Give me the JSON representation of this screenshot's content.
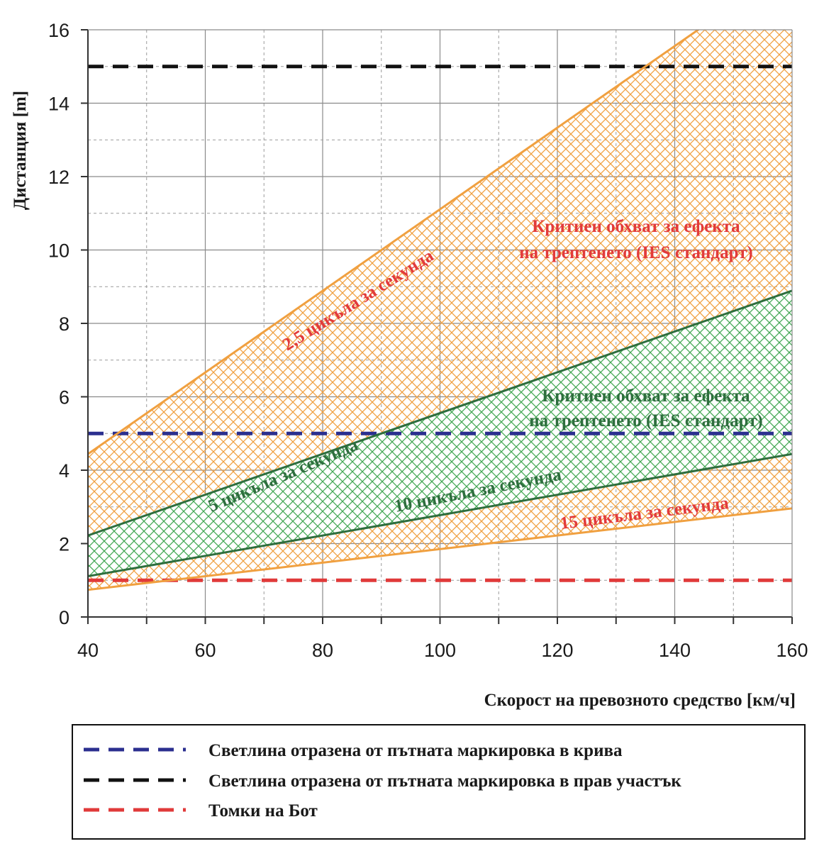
{
  "chart_data": {
    "type": "area",
    "xlabel": "Скорост на превозното средство [км/ч]",
    "ylabel": "Дистанция [m]",
    "xlim": [
      40,
      160
    ],
    "ylim": [
      0,
      16
    ],
    "xticks": [
      40,
      60,
      80,
      100,
      120,
      140,
      160
    ],
    "yticks": [
      0,
      2,
      4,
      6,
      8,
      10,
      12,
      14,
      16
    ],
    "grid": true,
    "colors": {
      "orange": "#f0a040",
      "green": "#2e6e3e",
      "green_hatch": "#44a855",
      "blue": "#2b2f8f",
      "black": "#111111",
      "red": "#e03a3a"
    },
    "series": [
      {
        "name": "2,5 цикъла за секунда",
        "x": [
          40,
          160
        ],
        "values": [
          4.44,
          17.78
        ]
      },
      {
        "name": "5 цикъла за секунда",
        "x": [
          40,
          160
        ],
        "values": [
          2.22,
          8.89
        ]
      },
      {
        "name": "10 цикъла за секунда",
        "x": [
          40,
          160
        ],
        "values": [
          1.11,
          4.44
        ]
      },
      {
        "name": "15 цикъла за секунда",
        "x": [
          40,
          160
        ],
        "values": [
          0.74,
          2.96
        ]
      }
    ],
    "reference_lines": [
      {
        "name": "Светлина отразена от пътната маркировка в крива",
        "y": 5
      },
      {
        "name": "Светлина отразена от пътната маркировка в прав участък",
        "y": 15
      },
      {
        "name": "Томки на Бот",
        "y": 1
      }
    ],
    "regions": [
      {
        "label_line1": "Критиен обхват за ефекта",
        "label_line2": "на трептенето (IES стандарт)",
        "between": [
          "2,5 цикъла за секунда",
          "15 цикъла за секунда"
        ]
      },
      {
        "label_line1": "Критиен обхват за ефекта",
        "label_line2": "на трептенето (IES стандарт)",
        "between": [
          "5 цикъла за секунда",
          "10 цикъла за секунда"
        ]
      }
    ],
    "legend": {
      "placement": "bottom",
      "entries": [
        "Светлина отразена от пътната маркировка в крива",
        "Светлина отразена от пътната маркировка в прав участък",
        "Томки на Бот"
      ]
    }
  }
}
